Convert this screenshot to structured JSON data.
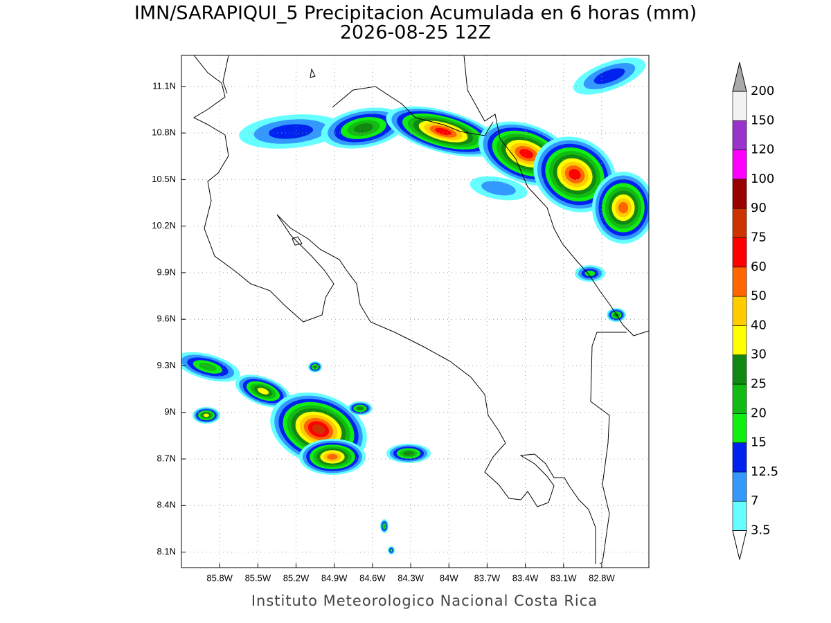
{
  "title": "IMN/SARAPIQUI_5 Precipitacion Acumulada en 6 horas (mm)",
  "subtitle": "2026-08-25 12Z",
  "footer": "Instituto Meteorologico Nacional Costa Rica",
  "map": {
    "xlim": [
      -86.1,
      -82.43
    ],
    "ylim": [
      8.0,
      11.3
    ],
    "grid": true,
    "xticks": [
      {
        "value": -85.8,
        "label": "85.8W"
      },
      {
        "value": -85.5,
        "label": "85.5W"
      },
      {
        "value": -85.2,
        "label": "85.2W"
      },
      {
        "value": -84.9,
        "label": "84.9W"
      },
      {
        "value": -84.6,
        "label": "84.6W"
      },
      {
        "value": -84.3,
        "label": "84.3W"
      },
      {
        "value": -84.0,
        "label": "84W"
      },
      {
        "value": -83.7,
        "label": "83.7W"
      },
      {
        "value": -83.4,
        "label": "83.4W"
      },
      {
        "value": -83.1,
        "label": "83.1W"
      },
      {
        "value": -82.8,
        "label": "82.8W"
      }
    ],
    "yticks": [
      {
        "value": 8.1,
        "label": "8.1N"
      },
      {
        "value": 8.4,
        "label": "8.4N"
      },
      {
        "value": 8.7,
        "label": "8.7N"
      },
      {
        "value": 9.0,
        "label": "9N"
      },
      {
        "value": 9.3,
        "label": "9.3N"
      },
      {
        "value": 9.6,
        "label": "9.6N"
      },
      {
        "value": 9.9,
        "label": "9.9N"
      },
      {
        "value": 10.2,
        "label": "10.2N"
      },
      {
        "value": 10.5,
        "label": "10.5N"
      },
      {
        "value": 10.8,
        "label": "10.8N"
      },
      {
        "value": 11.1,
        "label": "11.1N"
      }
    ]
  },
  "colorbar": {
    "levels": [
      3.5,
      7,
      12.5,
      15,
      20,
      25,
      30,
      40,
      50,
      60,
      75,
      90,
      100,
      120,
      150,
      200
    ],
    "colors": [
      "#66ffff",
      "#3399ff",
      "#0022ee",
      "#11ee11",
      "#11bb11",
      "#118811",
      "#ffff00",
      "#ffcc00",
      "#ff6600",
      "#ff0000",
      "#cc3300",
      "#990000",
      "#ff00ff",
      "#9933cc",
      "#f2f2f2"
    ],
    "over_color": "#aaaaaa",
    "under_color": "#ffffff"
  }
}
